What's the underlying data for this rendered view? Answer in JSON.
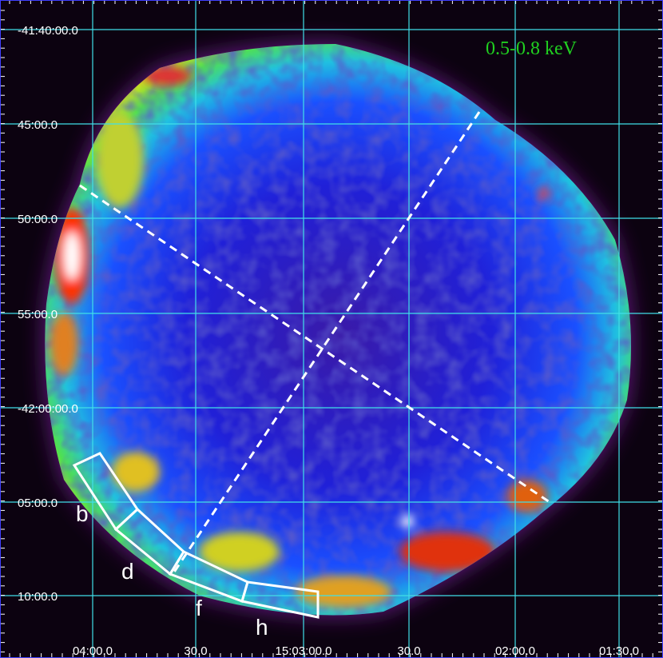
{
  "image": {
    "band_label": "0.5-0.8 keV",
    "dec_labels": [
      "-41:40:00.0",
      "45:00.0",
      "50:00.0",
      "55:00.0",
      "-42:00:00.0",
      "05:00.0",
      "10:00.0"
    ],
    "ra_labels": [
      "04:00.0",
      "30.0",
      "15:03:00.0",
      "30.0",
      "02:00.0",
      "01:30.0"
    ],
    "region_labels": [
      "b",
      "d",
      "f",
      "h"
    ]
  }
}
